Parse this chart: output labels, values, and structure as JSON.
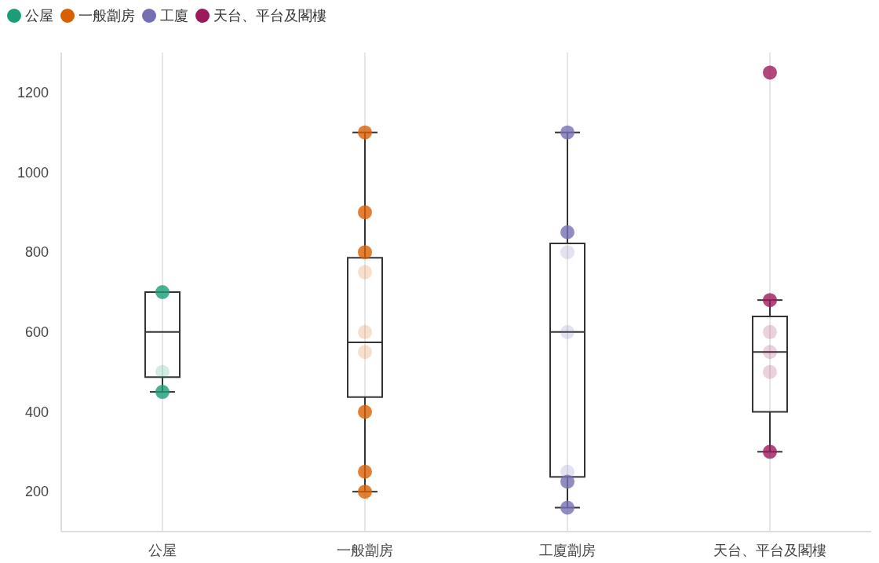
{
  "chart_data": {
    "type": "box",
    "categories": [
      "公屋",
      "一般劏房",
      "工廈劏房",
      "天台、平台及閣樓"
    ],
    "boxes": [
      {
        "low": 450,
        "q1": 487,
        "median": 600,
        "q3": 700,
        "high": 700
      },
      {
        "low": 200,
        "q1": 437,
        "median": 574,
        "q3": 786,
        "high": 1100
      },
      {
        "low": 160,
        "q1": 237,
        "median": 600,
        "q3": 822,
        "high": 1100
      },
      {
        "low": 300,
        "q1": 400,
        "median": 550,
        "q3": 639,
        "high": 680
      }
    ],
    "series": [
      {
        "type": "scatter",
        "name": "公屋",
        "color": "#1b9e77",
        "x": [
          "公屋",
          "公屋",
          "公屋"
        ],
        "values": [
          700,
          500,
          450
        ]
      },
      {
        "type": "scatter",
        "name": "一般劏房",
        "color": "#d95f02",
        "x": [
          "一般劏房",
          "一般劏房",
          "一般劏房",
          "一般劏房",
          "一般劏房",
          "一般劏房",
          "一般劏房",
          "一般劏房",
          "一般劏房"
        ],
        "values": [
          1100,
          900,
          800,
          750,
          600,
          550,
          400,
          250,
          200
        ]
      },
      {
        "type": "scatter",
        "name": "工廈",
        "color": "#7570b3",
        "x": [
          "工廈劏房",
          "工廈劏房",
          "工廈劏房",
          "工廈劏房",
          "工廈劏房",
          "工廈劏房",
          "工廈劏房"
        ],
        "values": [
          1100,
          850,
          800,
          600,
          250,
          225,
          160
        ]
      },
      {
        "type": "scatter",
        "name": "天台、平台及閣樓",
        "color": "#9c1a5a",
        "x": [
          "天台、平台及閣樓",
          "天台、平台及閣樓",
          "天台、平台及閣樓",
          "天台、平台及閣樓",
          "天台、平台及閣樓",
          "天台、平台及閣樓"
        ],
        "values": [
          1250,
          680,
          600,
          550,
          500,
          300
        ]
      }
    ],
    "ylim": [
      100,
      1300
    ],
    "yticks": [
      200,
      400,
      600,
      800,
      1000,
      1200
    ],
    "grid": "x",
    "legend": "top left",
    "marker": "circle"
  }
}
